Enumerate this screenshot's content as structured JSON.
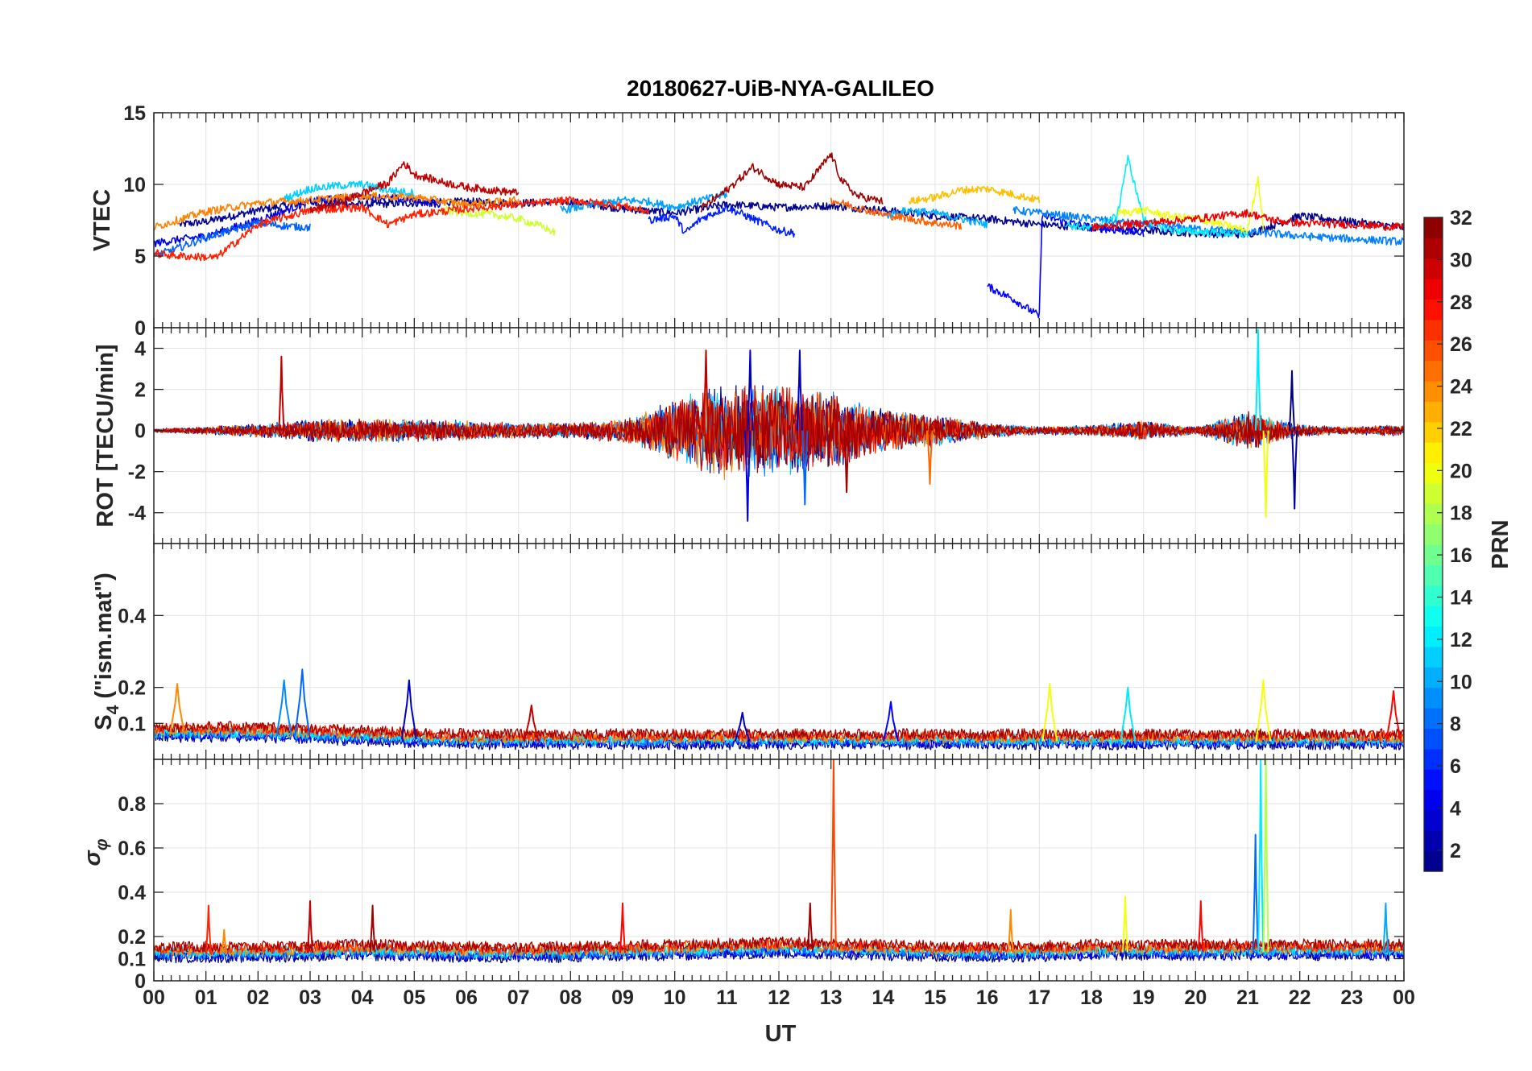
{
  "figure": {
    "title": "20180627-UiB-NYA-GALILEO",
    "xlabel": "UT",
    "x_tick_labels": [
      "00",
      "01",
      "02",
      "03",
      "04",
      "05",
      "06",
      "07",
      "08",
      "09",
      "10",
      "11",
      "12",
      "13",
      "14",
      "15",
      "16",
      "17",
      "18",
      "19",
      "20",
      "21",
      "22",
      "23",
      "00"
    ]
  },
  "colorbar": {
    "label": "PRN",
    "tick_labels": [
      "2",
      "4",
      "6",
      "8",
      "10",
      "12",
      "14",
      "16",
      "18",
      "20",
      "22",
      "24",
      "26",
      "28",
      "30",
      "32"
    ],
    "range": [
      1,
      32
    ],
    "colormap": "jet"
  },
  "chart_data": [
    {
      "type": "line",
      "panel": "vtec",
      "ylabel": "VTEC",
      "xlim": [
        0,
        24
      ],
      "ylim": [
        0,
        15
      ],
      "y_ticks": [
        0,
        5,
        10,
        15
      ],
      "grid": true,
      "series": [
        {
          "prn": 1,
          "color": "#00008f",
          "x": [
            0.5,
            1,
            2,
            3,
            4,
            5,
            6,
            7,
            8,
            9,
            10,
            11,
            12,
            13,
            14,
            15,
            16,
            17,
            18,
            19,
            20,
            21,
            22,
            23,
            24
          ],
          "y": [
            7.2,
            7.4,
            8.2,
            8.8,
            8.6,
            8.7,
            8.8,
            8.7,
            8.8,
            8.3,
            8.0,
            8.6,
            8.4,
            8.5,
            8.2,
            7.8,
            7.6,
            7.2,
            7.0,
            6.8,
            6.6,
            6.5,
            7.8,
            7.4,
            7.0
          ]
        },
        {
          "prn": 3,
          "color": "#0000df",
          "x": [
            0,
            1,
            2,
            3,
            4,
            5,
            5.5
          ],
          "y": [
            5.9,
            6.4,
            7.5,
            8.8,
            9.2,
            8.9,
            8.6
          ]
        },
        {
          "prn": 4,
          "color": "#0000ff",
          "x": [
            16.0,
            16.5,
            17.0,
            17.05,
            17.5,
            18,
            19
          ],
          "y": [
            2.9,
            2.0,
            0.8,
            7.8,
            7.4,
            7.0,
            6.6
          ]
        },
        {
          "prn": 5,
          "color": "#001fff",
          "x": [
            9.5,
            10,
            10.2,
            10.5,
            11,
            11.5,
            12,
            12.3
          ],
          "y": [
            7.5,
            7.8,
            6.6,
            7.6,
            8.4,
            7.6,
            6.8,
            6.6
          ]
        },
        {
          "prn": 7,
          "color": "#005fff",
          "x": [
            0,
            0.5,
            1,
            1.5,
            2,
            2.5,
            3
          ],
          "y": [
            5.0,
            5.6,
            6.3,
            6.8,
            7.3,
            7.1,
            7.0
          ]
        },
        {
          "prn": 8,
          "color": "#007fff",
          "x": [
            16.5,
            17,
            18,
            19,
            20,
            21,
            22,
            23,
            24
          ],
          "y": [
            8.2,
            8.0,
            7.6,
            7.2,
            6.9,
            6.7,
            6.4,
            6.2,
            6.0
          ]
        },
        {
          "prn": 9,
          "color": "#009fff",
          "x": [
            7.8,
            8.5,
            9.0,
            9.5,
            10,
            10.5,
            11
          ],
          "y": [
            8.2,
            8.6,
            8.9,
            8.8,
            8.4,
            8.9,
            9.3
          ]
        },
        {
          "prn": 10,
          "color": "#00afff",
          "x": [
            14,
            14.5,
            15,
            15.5,
            16
          ],
          "y": [
            7.8,
            8.2,
            8.0,
            7.6,
            7.2
          ]
        },
        {
          "prn": 11,
          "color": "#00cfff",
          "x": [
            2.5,
            3,
            3.5,
            4,
            4.5,
            5
          ],
          "y": [
            9.0,
            9.7,
            9.9,
            10.0,
            9.6,
            9.4
          ]
        },
        {
          "prn": 12,
          "color": "#00efff",
          "x": [
            17.5,
            18,
            18.5,
            18.6,
            18.7,
            19,
            19.5,
            20,
            20.5,
            21
          ],
          "y": [
            7.2,
            6.9,
            7.8,
            10.0,
            11.8,
            7.6,
            6.8,
            6.7,
            6.6,
            6.5
          ]
        },
        {
          "prn": 19,
          "color": "#cfff30",
          "x": [
            5.5,
            6,
            6.5,
            7,
            7.5,
            7.7
          ],
          "y": [
            8.2,
            8.0,
            7.9,
            7.6,
            7.0,
            6.6
          ]
        },
        {
          "prn": 20,
          "color": "#efff10",
          "x": [
            18.5,
            19,
            19.5,
            20,
            20.5,
            21,
            21.2,
            21.3
          ],
          "y": [
            8.0,
            8.2,
            7.8,
            7.6,
            7.2,
            6.8,
            10.5,
            7.0
          ]
        },
        {
          "prn": 22,
          "color": "#ffbf00",
          "x": [
            14.5,
            15,
            15.5,
            16,
            16.5,
            17
          ],
          "y": [
            8.8,
            9.1,
            9.6,
            9.7,
            9.3,
            8.9
          ]
        },
        {
          "prn": 24,
          "color": "#ff7f00",
          "x": [
            0,
            1,
            2,
            3,
            4,
            5,
            6,
            7
          ],
          "y": [
            7.0,
            8.1,
            8.7,
            8.9,
            9.2,
            9.1,
            8.6,
            8.9
          ]
        },
        {
          "prn": 25,
          "color": "#ff5f00",
          "x": [
            13,
            13.5,
            14,
            14.5,
            15,
            15.5
          ],
          "y": [
            8.9,
            8.4,
            7.9,
            7.6,
            7.3,
            7.1
          ]
        },
        {
          "prn": 27,
          "color": "#ff1f00",
          "x": [
            0,
            0.5,
            1.2,
            2,
            3,
            4,
            4.5,
            5,
            6,
            7,
            8,
            9,
            9.5
          ],
          "y": [
            5.2,
            5.0,
            4.9,
            7.2,
            8.2,
            8.4,
            7.2,
            7.9,
            8.3,
            8.6,
            8.9,
            8.5,
            8.1
          ]
        },
        {
          "prn": 28,
          "color": "#ef0000",
          "x": [
            18,
            19,
            20,
            21,
            21.5,
            22,
            23,
            24
          ],
          "y": [
            7.0,
            7.3,
            7.6,
            8.0,
            7.5,
            7.3,
            7.2,
            7.0
          ]
        },
        {
          "prn": 30,
          "color": "#bf0000",
          "x": [
            3,
            3.5,
            4,
            4.5,
            4.8,
            5,
            5.5,
            6,
            6.5,
            7
          ],
          "y": [
            8.2,
            8.6,
            9.4,
            10.1,
            11.5,
            10.7,
            10.2,
            9.8,
            9.6,
            9.4
          ]
        },
        {
          "prn": 31,
          "color": "#9f0000",
          "x": [
            10.5,
            11,
            11.5,
            12,
            12.5,
            13,
            13.2,
            13.5,
            14
          ],
          "y": [
            8.3,
            9.6,
            11.2,
            10.0,
            9.8,
            12.1,
            10.3,
            9.2,
            8.8
          ]
        }
      ]
    },
    {
      "type": "line",
      "panel": "rot",
      "ylabel": "ROT [TECU/min]",
      "xlim": [
        0,
        24
      ],
      "ylim": [
        -5.5,
        5
      ],
      "y_ticks": [
        -4,
        -2,
        0,
        2,
        4
      ],
      "grid": true,
      "envelope": {
        "x": [
          0,
          1,
          2,
          3,
          4,
          5,
          6,
          7,
          8,
          9,
          10,
          11,
          12,
          13,
          14,
          15,
          16,
          17,
          18,
          19,
          20,
          21,
          22,
          23,
          24
        ],
        "amplitude": [
          0.1,
          0.2,
          0.35,
          0.6,
          0.6,
          0.6,
          0.5,
          0.4,
          0.4,
          0.6,
          1.6,
          2.5,
          2.4,
          2.0,
          1.1,
          0.8,
          0.4,
          0.2,
          0.3,
          0.5,
          0.2,
          1.0,
          0.3,
          0.2,
          0.3
        ]
      },
      "spikes": [
        {
          "x": 2.45,
          "y": 3.6,
          "prn": 30
        },
        {
          "x": 10.6,
          "y": 3.9,
          "prn": 30
        },
        {
          "x": 11.4,
          "y": -4.4,
          "prn": 4
        },
        {
          "x": 11.45,
          "y": 3.9,
          "prn": 3
        },
        {
          "x": 12.4,
          "y": 3.9,
          "prn": 3
        },
        {
          "x": 12.5,
          "y": -3.6,
          "prn": 8
        },
        {
          "x": 13.3,
          "y": -3.0,
          "prn": 31
        },
        {
          "x": 14.9,
          "y": -2.6,
          "prn": 25
        },
        {
          "x": 21.2,
          "y": 4.9,
          "prn": 12
        },
        {
          "x": 21.35,
          "y": -4.2,
          "prn": 20
        },
        {
          "x": 21.85,
          "y": 2.9,
          "prn": 1
        },
        {
          "x": 21.9,
          "y": -3.8,
          "prn": 2
        }
      ]
    },
    {
      "type": "line",
      "panel": "s4",
      "ylabel": "S4 (\"ism.mat\")",
      "xlim": [
        0,
        24
      ],
      "ylim": [
        0,
        0.6
      ],
      "y_ticks": [
        0.1,
        0.2,
        0.4
      ],
      "grid": true,
      "baseline": {
        "x": [
          0,
          2,
          4,
          6,
          8,
          10,
          12,
          14,
          16,
          18,
          20,
          22,
          24
        ],
        "y": [
          0.07,
          0.07,
          0.06,
          0.05,
          0.05,
          0.05,
          0.05,
          0.05,
          0.05,
          0.05,
          0.05,
          0.05,
          0.05
        ]
      },
      "peaks": [
        {
          "x": 0.45,
          "y": 0.21,
          "prn": 24
        },
        {
          "x": 2.5,
          "y": 0.22,
          "prn": 9
        },
        {
          "x": 2.85,
          "y": 0.25,
          "prn": 8
        },
        {
          "x": 4.9,
          "y": 0.22,
          "prn": 3
        },
        {
          "x": 7.25,
          "y": 0.15,
          "prn": 30
        },
        {
          "x": 11.3,
          "y": 0.13,
          "prn": 3
        },
        {
          "x": 14.15,
          "y": 0.16,
          "prn": 5
        },
        {
          "x": 17.2,
          "y": 0.21,
          "prn": 20
        },
        {
          "x": 18.7,
          "y": 0.2,
          "prn": 12
        },
        {
          "x": 21.3,
          "y": 0.22,
          "prn": 20
        },
        {
          "x": 23.8,
          "y": 0.19,
          "prn": 28
        }
      ]
    },
    {
      "type": "line",
      "panel": "sigma_phi",
      "ylabel": "σφ",
      "xlim": [
        0,
        24
      ],
      "ylim": [
        0,
        1
      ],
      "y_ticks": [
        0,
        0.1,
        0.2,
        0.4,
        0.6,
        0.8
      ],
      "grid": true,
      "baseline": {
        "x": [
          0,
          2,
          4,
          6,
          8,
          10,
          12,
          14,
          16,
          18,
          20,
          22,
          24
        ],
        "y": [
          0.12,
          0.12,
          0.13,
          0.12,
          0.12,
          0.13,
          0.14,
          0.13,
          0.12,
          0.13,
          0.13,
          0.13,
          0.13
        ]
      },
      "spikes": [
        {
          "x": 1.05,
          "y": 0.34,
          "prn": 27
        },
        {
          "x": 1.35,
          "y": 0.23,
          "prn": 24
        },
        {
          "x": 3.0,
          "y": 0.36,
          "prn": 30
        },
        {
          "x": 4.2,
          "y": 0.34,
          "prn": 31
        },
        {
          "x": 9.0,
          "y": 0.35,
          "prn": 28
        },
        {
          "x": 12.6,
          "y": 0.35,
          "prn": 31
        },
        {
          "x": 13.05,
          "y": 1.0,
          "prn": 26
        },
        {
          "x": 16.45,
          "y": 0.32,
          "prn": 24
        },
        {
          "x": 18.65,
          "y": 0.38,
          "prn": 20
        },
        {
          "x": 20.1,
          "y": 0.36,
          "prn": 28
        },
        {
          "x": 21.15,
          "y": 0.66,
          "prn": 8
        },
        {
          "x": 21.25,
          "y": 1.0,
          "prn": 12
        },
        {
          "x": 21.35,
          "y": 1.0,
          "prn": 18
        },
        {
          "x": 23.65,
          "y": 0.35,
          "prn": 10
        }
      ]
    }
  ]
}
